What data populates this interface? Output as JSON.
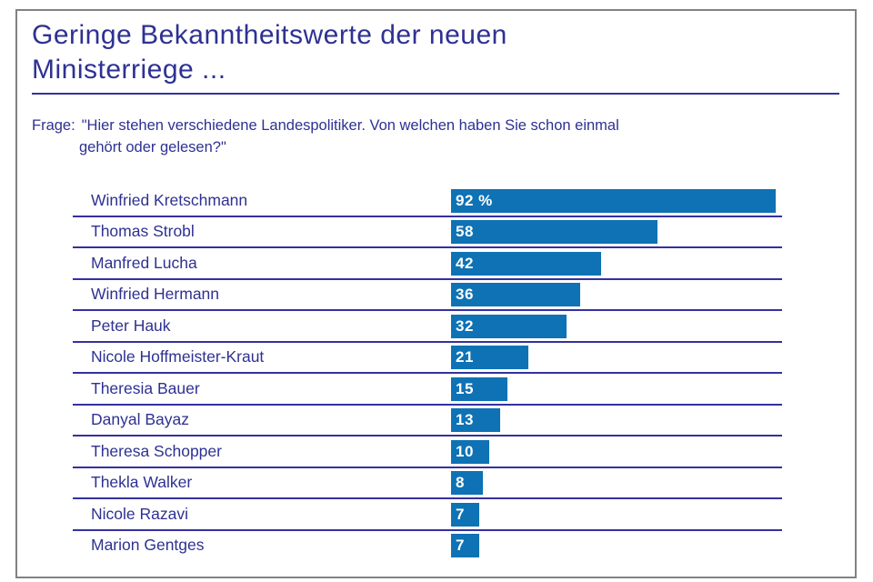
{
  "page": {
    "title_line1": "Geringe Bekanntheitswerte der neuen",
    "title_line2": "Ministerriege ...",
    "question_prefix": "Frage:",
    "question_line1": "\"Hier stehen verschiedene Landespolitiker. Von welchen haben Sie schon einmal",
    "question_line2": "gehört oder gelesen?\""
  },
  "colors": {
    "bar_fill": "#0e72b5",
    "text_blue": "#2e3192",
    "separator_line": "#34319f",
    "frame_border": "#828282",
    "bar_value_text": "#ffffff"
  },
  "chart_data": {
    "type": "bar",
    "orientation": "horizontal",
    "title": "Geringe Bekanntheitswerte der neuen Ministerriege ...",
    "subtitle": "Frage: \"Hier stehen verschiedene Landespolitiker. Von welchen haben Sie schon einmal gehört oder gelesen?\"",
    "unit": "%",
    "xlim": [
      0,
      95
    ],
    "grid": false,
    "legend": false,
    "categories": [
      "Winfried Kretschmann",
      "Thomas Strobl",
      "Manfred Lucha",
      "Winfried Hermann",
      "Peter Hauk",
      "Nicole Hoffmeister-Kraut",
      "Theresia Bauer",
      "Danyal Bayaz",
      "Theresa Schopper",
      "Thekla Walker",
      "Nicole Razavi",
      "Marion Gentges"
    ],
    "values": [
      92,
      58,
      42,
      36,
      32,
      21,
      15,
      13,
      10,
      8,
      7,
      7
    ],
    "value_labels": [
      "92 %",
      "58",
      "42",
      "36",
      "32",
      "21",
      "15",
      "13",
      "10",
      "8",
      "7",
      "7"
    ]
  }
}
